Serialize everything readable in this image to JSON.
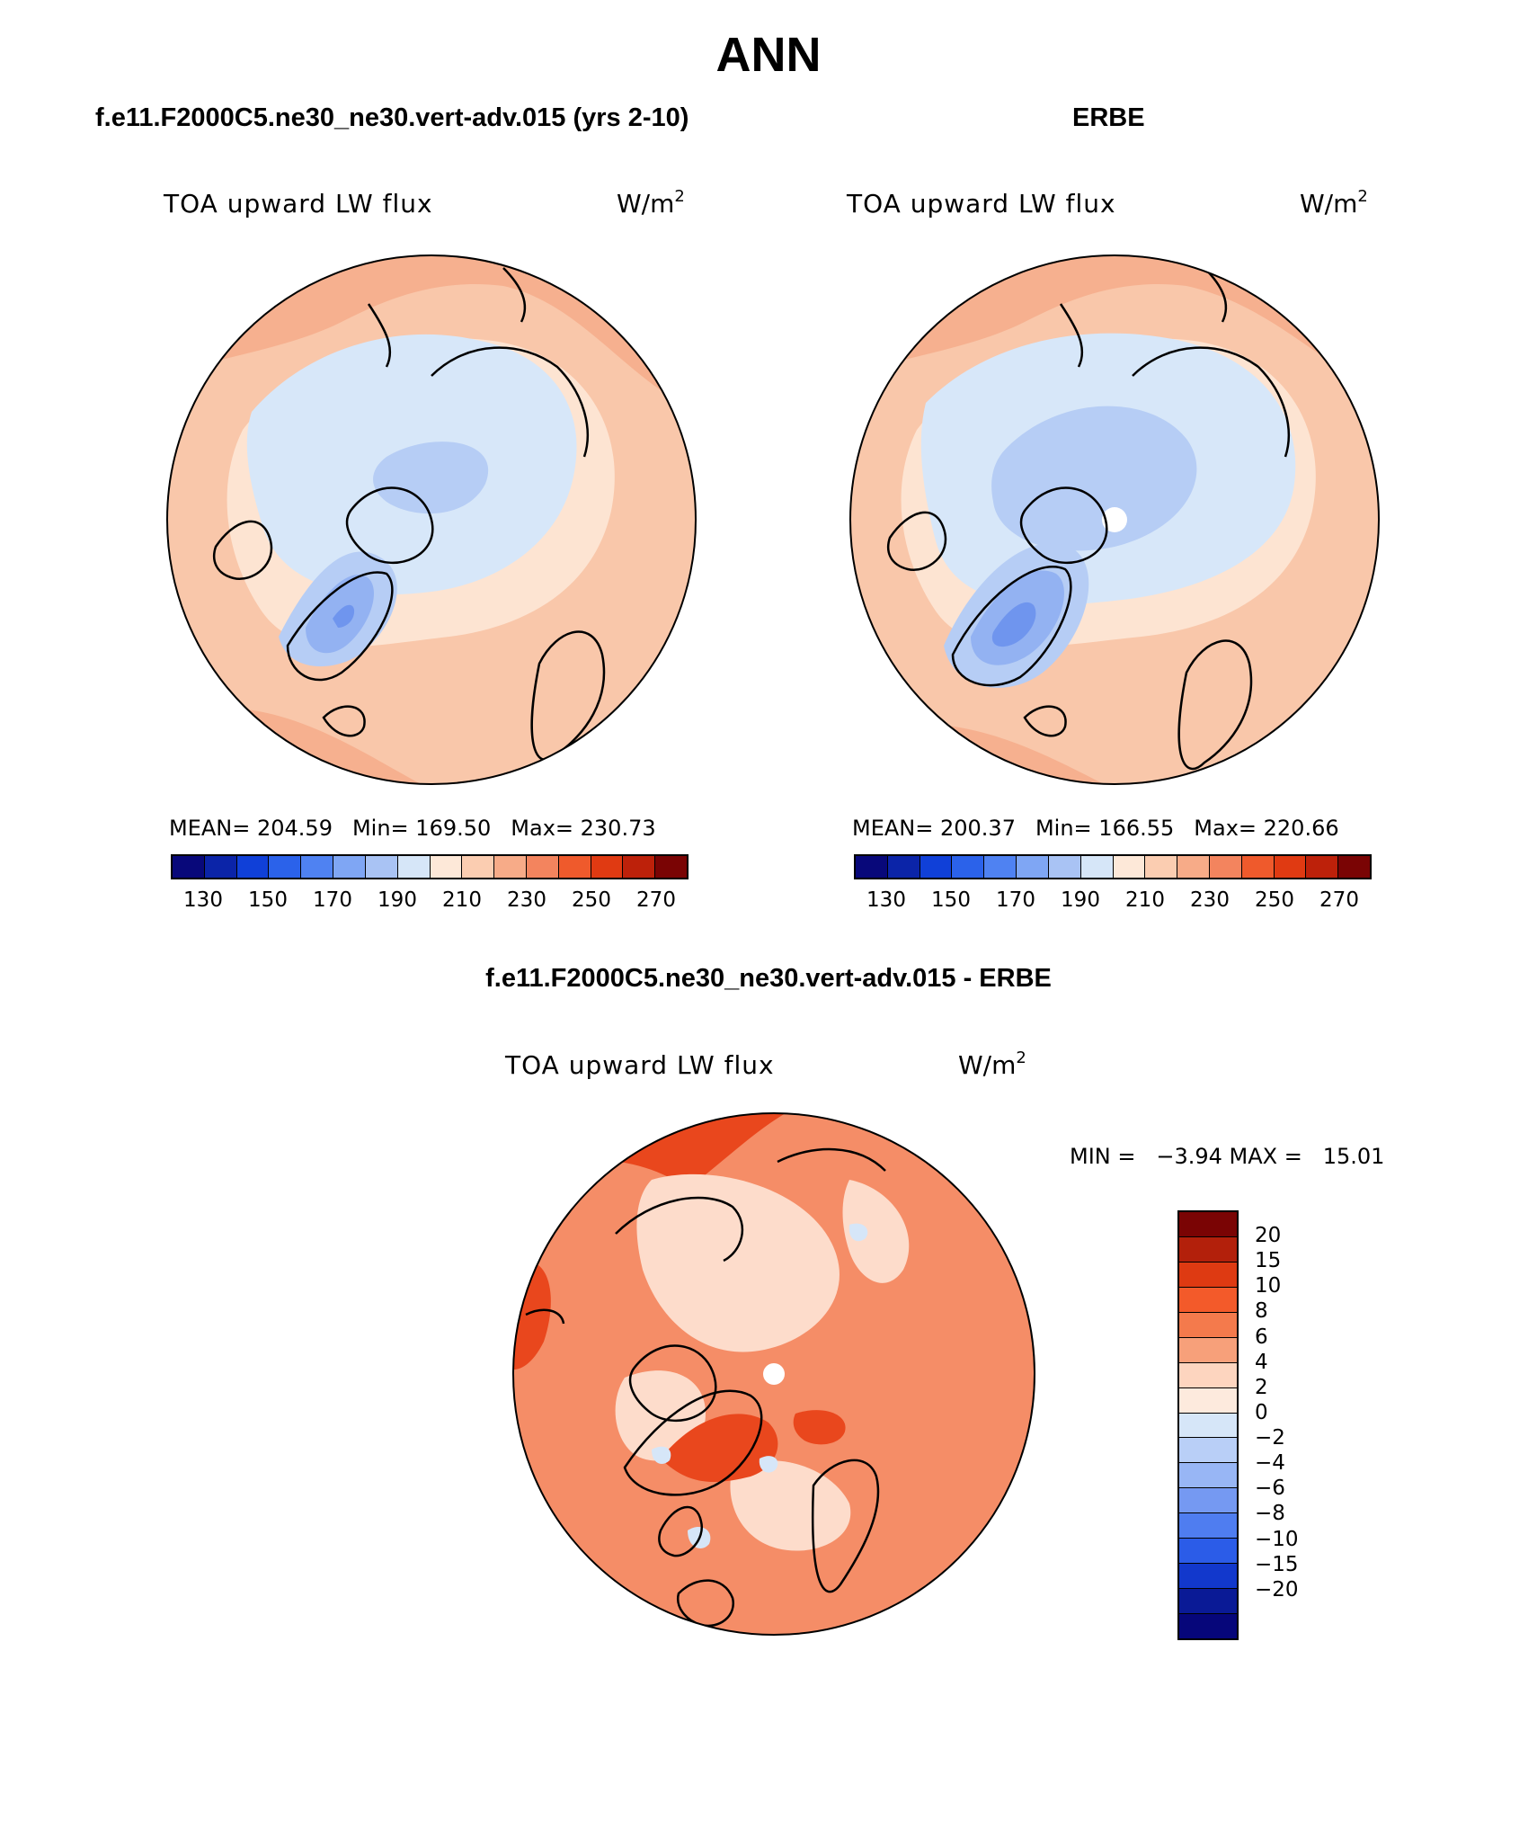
{
  "title": "ANN",
  "panels": [
    {
      "title": "f.e11.F2000C5.ne30_ne30.vert-adv.015 (yrs 2-10)",
      "variable": "TOA upward LW flux",
      "units": "W/m",
      "units_exp": "2",
      "mean": "MEAN= 204.59",
      "min": "Min= 169.50",
      "max": "Max= 230.73"
    },
    {
      "title": "ERBE",
      "variable": "TOA upward LW flux",
      "units": "W/m",
      "units_exp": "2",
      "mean": "MEAN= 200.37",
      "min": "Min= 166.55",
      "max": "Max= 220.66"
    },
    {
      "title": "f.e11.F2000C5.ne30_ne30.vert-adv.015 - ERBE",
      "variable": "TOA upward LW flux",
      "units": "W/m",
      "units_exp": "2",
      "minmax": "MIN =   −3.94 MAX =   15.01"
    }
  ],
  "colorbar_abs": {
    "colors": [
      "#08087a",
      "#0b24a8",
      "#1040d8",
      "#2b62ea",
      "#4f82f2",
      "#7fa6f4",
      "#a9c3f4",
      "#d6e6f8",
      "#fde8d8",
      "#fbcdb1",
      "#f7ab88",
      "#f3845e",
      "#ef5a2c",
      "#e03a12",
      "#bd210a",
      "#7a0404"
    ],
    "ticks": [
      "130",
      "150",
      "170",
      "190",
      "210",
      "230",
      "250",
      "270"
    ]
  },
  "colorbar_diff": {
    "colors": [
      "#7a0404",
      "#b3200b",
      "#de3a12",
      "#f35a2a",
      "#f47a4c",
      "#f7a07a",
      "#fdd5bf",
      "#fdeadd",
      "#d6e6f8",
      "#b9cff7",
      "#98b6f5",
      "#7599f2",
      "#4f7df0",
      "#2b5ce8",
      "#1238cc",
      "#0a1a96",
      "#06067a"
    ],
    "ticks": [
      "20",
      "15",
      "10",
      "8",
      "6",
      "4",
      "2",
      "0",
      "−2",
      "−4",
      "−6",
      "−8",
      "−10",
      "−15",
      "−20"
    ]
  }
}
